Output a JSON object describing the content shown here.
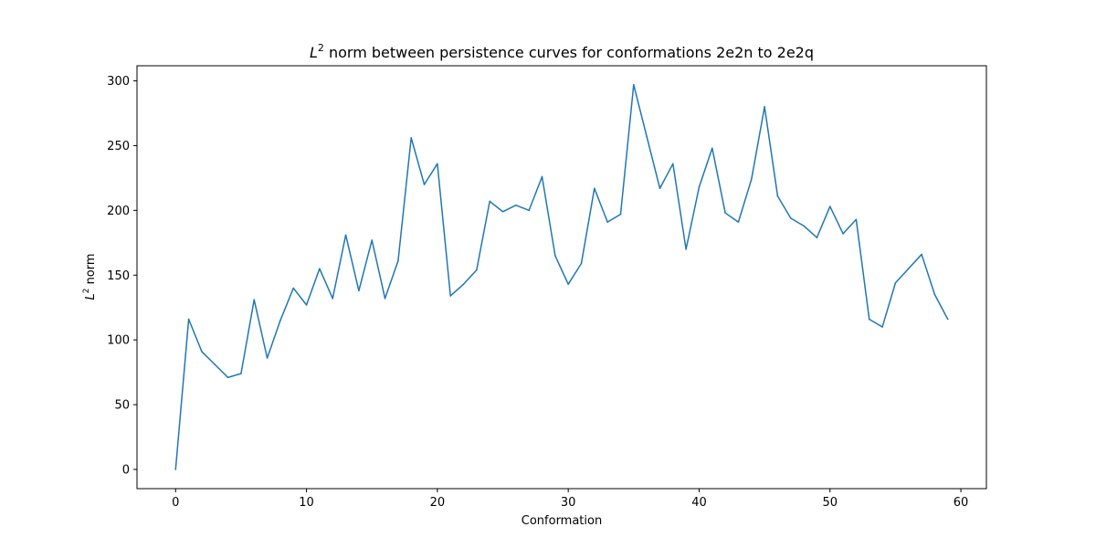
{
  "chart_data": {
    "type": "line",
    "title_prefix": "L",
    "title_sup": "2",
    "title_rest": " norm between persistence curves for conformations 2e2n to 2e2q",
    "xlabel": "Conformation",
    "ylabel_prefix": "L",
    "ylabel_sup": "2",
    "ylabel_rest": " norm",
    "xlim": [
      -2.95,
      61.95
    ],
    "ylim": [
      -14.84,
      311.67
    ],
    "xticks": [
      0,
      10,
      20,
      30,
      40,
      50,
      60
    ],
    "yticks": [
      0,
      50,
      100,
      150,
      200,
      250,
      300
    ],
    "line_color": "#1f77b4",
    "grid": false,
    "legend": "none",
    "x": [
      0,
      1,
      2,
      3,
      4,
      5,
      6,
      7,
      8,
      9,
      10,
      11,
      12,
      13,
      14,
      15,
      16,
      17,
      18,
      19,
      20,
      21,
      22,
      23,
      24,
      25,
      26,
      27,
      28,
      29,
      30,
      31,
      32,
      33,
      34,
      35,
      36,
      37,
      38,
      39,
      40,
      41,
      42,
      43,
      44,
      45,
      46,
      47,
      48,
      49,
      50,
      51,
      52,
      53,
      54,
      55,
      56,
      57,
      58,
      59
    ],
    "y": [
      0,
      116,
      91,
      81,
      71,
      74,
      131,
      86,
      115,
      140,
      127,
      155,
      132,
      181,
      138,
      177,
      132,
      161,
      256,
      220,
      236,
      134,
      143,
      154,
      207,
      199,
      204,
      200,
      226,
      165,
      143,
      159,
      217,
      191,
      197,
      297,
      257,
      217,
      236,
      170,
      218,
      248,
      198,
      191,
      224,
      280,
      211,
      194,
      188,
      179,
      203,
      182,
      193,
      116,
      110,
      144,
      155,
      166,
      135,
      116
    ]
  }
}
